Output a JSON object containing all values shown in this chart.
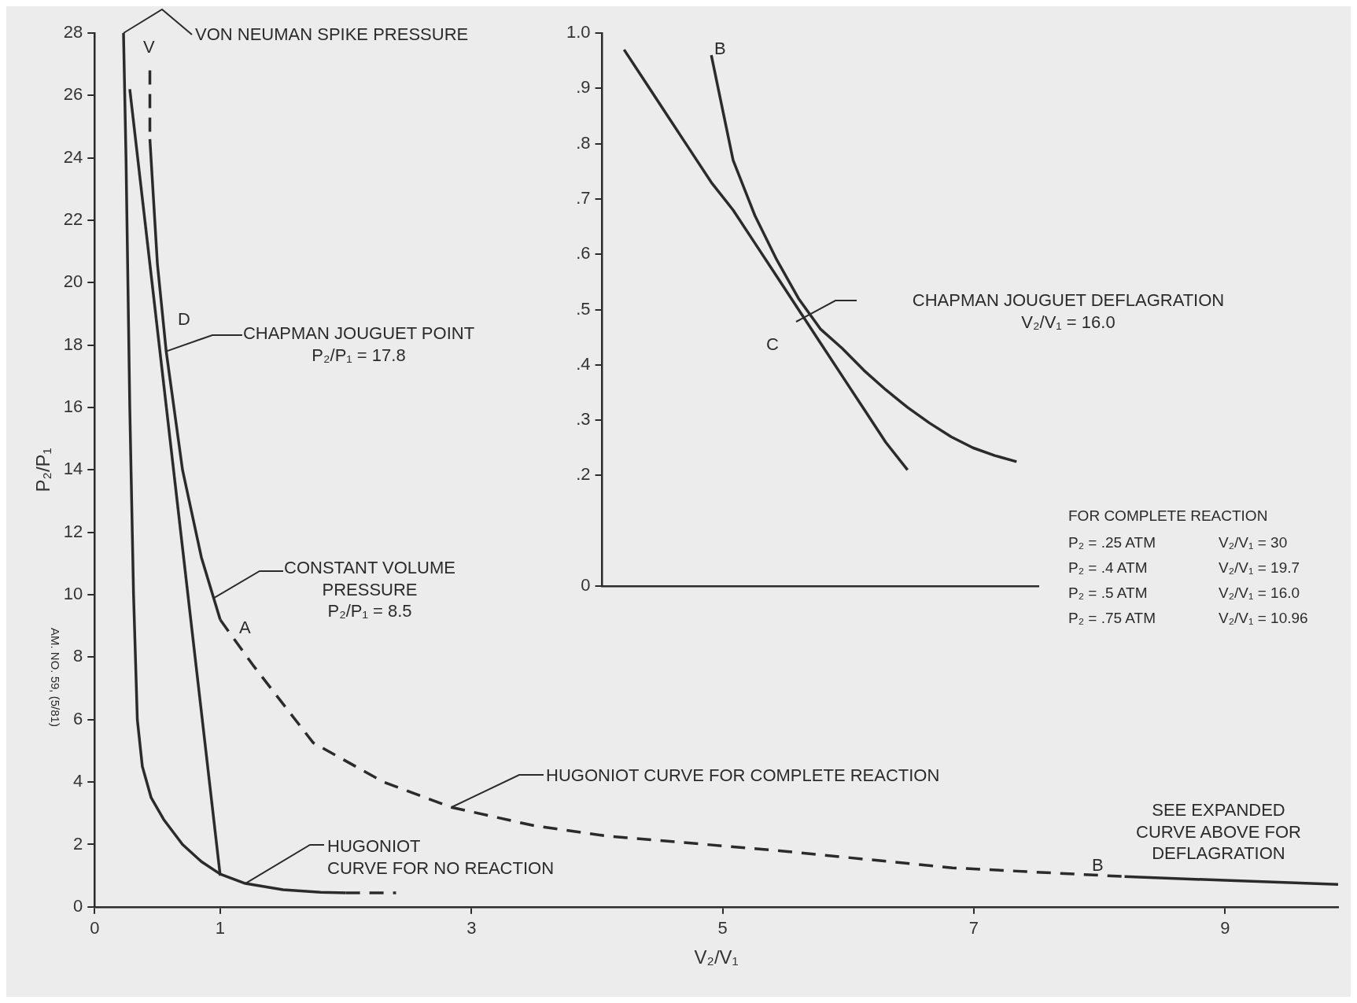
{
  "chart_data": [
    {
      "type": "line",
      "xlabel": "V₂/V₁",
      "ylabel": "P₂/P₁",
      "xlim": [
        0,
        9.9
      ],
      "xticks": [
        0,
        1,
        3,
        5,
        7,
        9
      ],
      "ylim": [
        0,
        28
      ],
      "yticks": [
        0,
        2,
        4,
        6,
        8,
        10,
        12,
        14,
        16,
        18,
        20,
        22,
        24,
        26,
        28
      ],
      "grid": false,
      "legend": false,
      "marker": "none",
      "series": [
        {
          "type": "line",
          "line_style": "solid",
          "color": "#2b2b2b",
          "x": [
            0.23,
            0.25,
            0.28,
            0.31,
            0.34,
            0.38,
            0.45,
            0.55,
            0.7,
            0.85,
            1,
            1.2,
            1.5,
            1.8,
            2.0
          ],
          "values": [
            28,
            24,
            16,
            10,
            6,
            4.5,
            3.5,
            2.8,
            2.0,
            1.45,
            1.05,
            0.75,
            0.55,
            0.47,
            0.45
          ]
        },
        {
          "type": "line",
          "line_style": "dashed",
          "color": "#2b2b2b",
          "x": [
            2.0,
            2.4
          ],
          "values": [
            0.45,
            0.45
          ]
        },
        {
          "type": "line",
          "line_style": "solid",
          "color": "#2b2b2b",
          "x": [
            0.28,
            1.0
          ],
          "values": [
            26.2,
            1.0
          ]
        },
        {
          "type": "line",
          "line_style": "dashed",
          "color": "#2b2b2b",
          "x": [
            0.44,
            0.44
          ],
          "values": [
            26.8,
            24.8
          ]
        },
        {
          "type": "line",
          "line_style": "solid",
          "color": "#2b2b2b",
          "x": [
            0.44,
            0.5,
            0.57,
            0.7,
            0.85,
            1.0
          ],
          "values": [
            24.6,
            20.6,
            17.8,
            14.0,
            11.2,
            9.2
          ]
        },
        {
          "type": "line",
          "line_style": "dashed",
          "color": "#2b2b2b",
          "x": [
            1.0,
            1.26,
            1.74,
            2.3,
            2.84,
            3.5,
            4.08,
            5.45,
            6.83,
            8.2
          ],
          "values": [
            9.2,
            7.75,
            5.26,
            4.0,
            3.19,
            2.6,
            2.27,
            1.8,
            1.25,
            0.97
          ]
        },
        {
          "type": "line",
          "line_style": "solid",
          "color": "#2b2b2b",
          "x": [
            8.2,
            9.0,
            9.9
          ],
          "values": [
            0.97,
            0.85,
            0.72
          ]
        }
      ],
      "annotations": [
        "V",
        {
          "text": "VON NEUMAN SPIKE PRESSURE",
          "x": 0.23,
          "y": 28
        },
        "D",
        {
          "text": "CHAPMAN JOUGUET POINT\nP₂/P₁ = 17.8",
          "x": 0.57,
          "y": 17.8
        },
        "A",
        {
          "text": "CONSTANT VOLUME\nPRESSURE\nP₂/P₁ = 8.5",
          "x": 0.95,
          "y": 9.9
        },
        {
          "text": "HUGONIOT CURVE FOR COMPLETE REACTION",
          "x": 2.84,
          "y": 3.19
        },
        {
          "text": "HUGONIOT\nCURVE FOR NO REACTION",
          "x": 1.2,
          "y": 0.75
        },
        "B",
        "SEE EXPANDED\nCURVE ABOVE FOR\nDEFLAGRATION",
        "AM. NO. 59, (5/81)"
      ]
    },
    {
      "type": "line",
      "categories": [
        null,
        null,
        null,
        null,
        null,
        null,
        null,
        null,
        null,
        null,
        null,
        null,
        null,
        null,
        null,
        null,
        null,
        null,
        null,
        null,
        null
      ],
      "ylim": [
        0,
        1
      ],
      "yticks": [
        0,
        {
          "value": 0.2,
          "label": ".2"
        },
        {
          "value": 0.3,
          "label": ".3"
        },
        {
          "value": 0.4,
          "label": ".4"
        },
        {
          "value": 0.5,
          "label": ".5"
        },
        {
          "value": 0.6,
          "label": ".6"
        },
        {
          "value": 0.7,
          "label": ".7"
        },
        {
          "value": 0.8,
          "label": ".8"
        },
        {
          "value": 0.9,
          "label": ".9"
        },
        {
          "value": 1,
          "label": "1.0"
        }
      ],
      "grid": false,
      "legend": false,
      "marker": "none",
      "tick_labels": "y",
      "series": [
        {
          "type": "line",
          "line_style": "solid",
          "color": "#2b2b2b",
          "values": [
            null,
            0.97,
            0.91,
            0.85,
            0.79,
            0.73,
            0.68,
            0.62,
            0.56,
            0.5,
            0.44,
            0.38,
            0.32,
            0.26,
            0.21,
            null,
            null,
            null,
            null,
            null,
            null
          ]
        },
        {
          "type": "line",
          "line_style": "solid",
          "color": "#2b2b2b",
          "values": [
            null,
            null,
            null,
            null,
            null,
            0.96,
            0.77,
            0.67,
            0.59,
            0.52,
            0.465,
            0.43,
            0.39,
            0.355,
            0.323,
            0.295,
            0.27,
            0.25,
            0.236,
            0.225,
            null
          ]
        }
      ],
      "annotations": [
        "B",
        "C",
        "CHAPMAN JOUGUET DEFLAGRATION\nV₂/V₁ = 16.0",
        "FOR COMPLETE REACTION",
        "P₂ = .25 ATM",
        "P₂ = .4 ATM",
        "P₂ = .5 ATM",
        "P₂ = .75 ATM",
        "V₂/V₁ = 30",
        "V₂/V₁ = 19.7",
        "V₂/V₁ = 16.0",
        "V₂/V₁ = 10.96"
      ]
    }
  ]
}
